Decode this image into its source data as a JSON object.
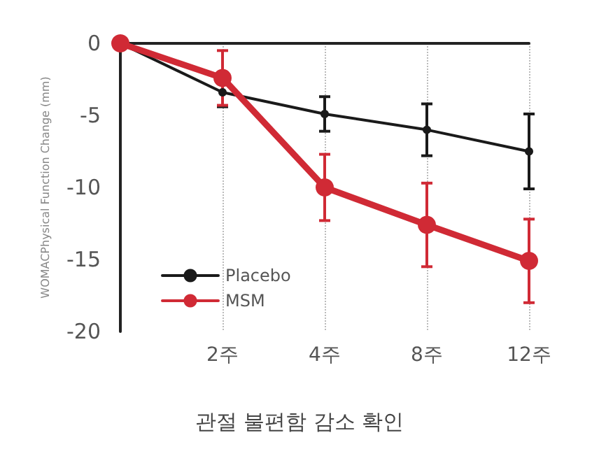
{
  "chart_data": {
    "type": "line",
    "title": "관절 불편함 감소 확인",
    "ylabel": "WOMACPhysical Function Change (mm)",
    "categories": [
      null,
      "2주",
      "4주",
      "8주",
      "12주"
    ],
    "series": [
      {
        "name": "Placebo",
        "color": "#1a1a1a",
        "values": [
          0,
          -3.4,
          -4.9,
          -6.0,
          -7.5
        ],
        "errors": [
          null,
          1.0,
          1.2,
          1.8,
          2.6
        ]
      },
      {
        "name": "MSM",
        "color": "#d02a35",
        "values": [
          0,
          -2.4,
          -10.0,
          -12.6,
          -15.1
        ],
        "errors": [
          null,
          1.9,
          2.3,
          2.9,
          2.9
        ]
      }
    ],
    "ylim": [
      -20,
      0
    ],
    "yticks": [
      -20,
      -15,
      -10,
      -5,
      0
    ],
    "grid": "x",
    "legend": "bottom left",
    "marker": "circle",
    "line_style": "solid"
  }
}
